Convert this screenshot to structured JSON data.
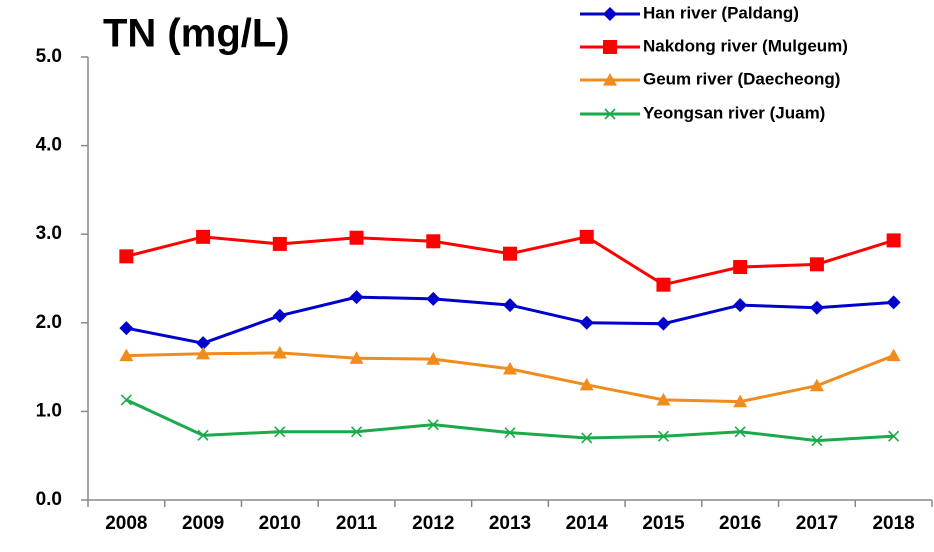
{
  "chart_data": {
    "type": "line",
    "title": "TN (mg/L)",
    "categories": [
      "2008",
      "2009",
      "2010",
      "2011",
      "2012",
      "2013",
      "2014",
      "2015",
      "2016",
      "2017",
      "2018"
    ],
    "series": [
      {
        "name": "Han river (Paldang)",
        "color": "#0000cc",
        "marker": "diamond",
        "values": [
          1.94,
          1.77,
          2.08,
          2.29,
          2.27,
          2.2,
          2.0,
          1.99,
          2.2,
          2.17,
          2.23
        ]
      },
      {
        "name": "Nakdong river (Mulgeum)",
        "color": "#ff0000",
        "marker": "square",
        "values": [
          2.75,
          2.97,
          2.89,
          2.96,
          2.92,
          2.78,
          2.97,
          2.43,
          2.63,
          2.66,
          2.93
        ]
      },
      {
        "name": "Geum river (Daecheong)",
        "color": "#f08c1e",
        "marker": "triangle",
        "values": [
          1.63,
          1.65,
          1.66,
          1.6,
          1.59,
          1.48,
          1.3,
          1.13,
          1.11,
          1.29,
          1.63
        ]
      },
      {
        "name": "Yeongsan river (Juam)",
        "color": "#1aaa4a",
        "marker": "x",
        "values": [
          1.13,
          0.73,
          0.77,
          0.77,
          0.85,
          0.76,
          0.7,
          0.72,
          0.77,
          0.67,
          0.72
        ]
      }
    ],
    "ylim": [
      0,
      5
    ],
    "yticks": [
      {
        "value": 0,
        "label": "0.0"
      },
      {
        "value": 1,
        "label": "1.0"
      },
      {
        "value": 2,
        "label": "2.0"
      },
      {
        "value": 3,
        "label": "3.0"
      },
      {
        "value": 4,
        "label": "4.0"
      },
      {
        "value": 5,
        "label": "5.0"
      }
    ],
    "grid": false
  }
}
